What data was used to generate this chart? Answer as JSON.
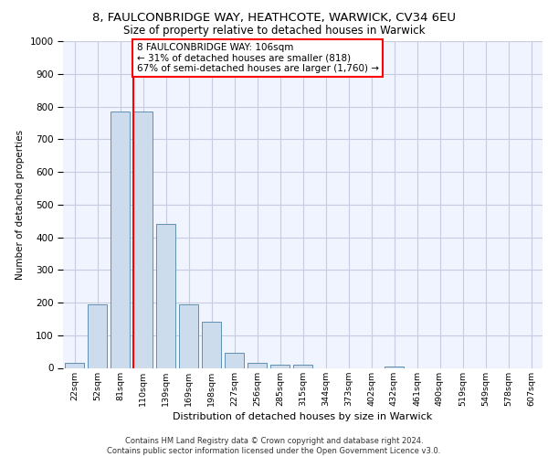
{
  "title1": "8, FAULCONBRIDGE WAY, HEATHCOTE, WARWICK, CV34 6EU",
  "title2": "Size of property relative to detached houses in Warwick",
  "xlabel": "Distribution of detached houses by size in Warwick",
  "ylabel": "Number of detached properties",
  "categories": [
    "22sqm",
    "52sqm",
    "81sqm",
    "110sqm",
    "139sqm",
    "169sqm",
    "198sqm",
    "227sqm",
    "256sqm",
    "285sqm",
    "315sqm",
    "344sqm",
    "373sqm",
    "402sqm",
    "432sqm",
    "461sqm",
    "490sqm",
    "519sqm",
    "549sqm",
    "578sqm",
    "607sqm"
  ],
  "values": [
    15,
    195,
    785,
    785,
    440,
    195,
    140,
    45,
    15,
    10,
    10,
    0,
    0,
    0,
    5,
    0,
    0,
    0,
    0,
    0,
    0
  ],
  "bar_color": "#ccdcec",
  "bar_edge_color": "#6090b0",
  "red_line_bin": 3,
  "annotation_text": "8 FAULCONBRIDGE WAY: 106sqm\n← 31% of detached houses are smaller (818)\n67% of semi-detached houses are larger (1,760) →",
  "annotation_box_color": "white",
  "annotation_box_edge_color": "red",
  "ylim": [
    0,
    1000
  ],
  "yticks": [
    0,
    100,
    200,
    300,
    400,
    500,
    600,
    700,
    800,
    900,
    1000
  ],
  "footer_text": "Contains HM Land Registry data © Crown copyright and database right 2024.\nContains public sector information licensed under the Open Government Licence v3.0.",
  "bg_color": "#f0f4ff",
  "grid_color": "#c8cce0",
  "title1_fontsize": 9.5,
  "title2_fontsize": 8.5,
  "ylabel_fontsize": 7.5,
  "xlabel_fontsize": 8.0,
  "xtick_fontsize": 6.8,
  "ytick_fontsize": 7.5,
  "annotation_fontsize": 7.5,
  "footer_fontsize": 6.0
}
